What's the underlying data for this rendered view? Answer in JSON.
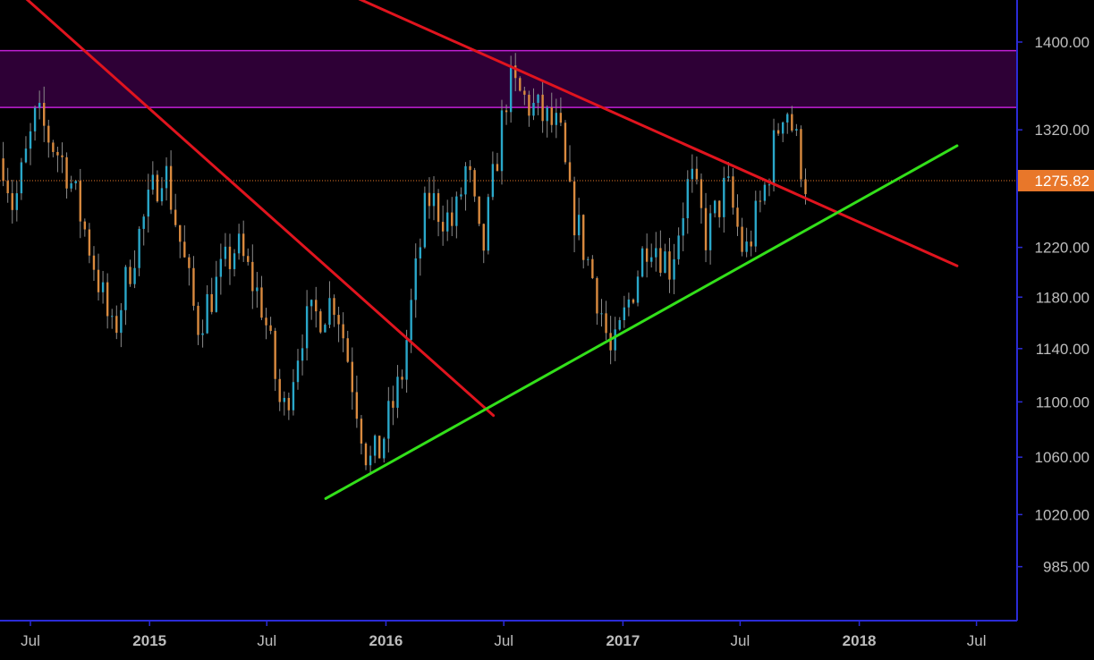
{
  "colors": {
    "background": "#000000",
    "axis": "#2b2bd6",
    "axis_text": "#bdbdbd",
    "candle_up": "#2aa7c9",
    "candle_down": "#d98a3f",
    "resistance_zone_fill": "#2e0036",
    "resistance_zone_edge": "#c21fd6",
    "downtrend": "#e0141e",
    "uptrend": "#33e01a",
    "last_price": "#e8772a",
    "last_price_label_text": "#ffffff"
  },
  "chart_data": {
    "type": "candlestick",
    "title": "",
    "xlabel": "",
    "ylabel": "",
    "ylim": [
      950,
      1440
    ],
    "y_scale": "log",
    "y_tick_labels": [
      "1400.00",
      "1320.00",
      "1220.00",
      "1180.00",
      "1140.00",
      "1100.00",
      "1060.00",
      "1020.00",
      "985.00"
    ],
    "y_tick_values": [
      1400,
      1320,
      1220,
      1180,
      1140,
      1100,
      1060,
      1020,
      985
    ],
    "x_range": [
      "2014-05-15",
      "2018-09-01"
    ],
    "x_tick_labels": [
      "Jul",
      "2015",
      "Jul",
      "2016",
      "Jul",
      "2017",
      "Jul",
      "2018",
      "Jul"
    ],
    "x_tick_dates": [
      "2014-07-01",
      "2015-01-01",
      "2015-07-01",
      "2016-01-01",
      "2016-07-01",
      "2017-01-01",
      "2017-07-01",
      "2018-01-01",
      "2018-07-01"
    ],
    "last_price": 1275.82,
    "last_price_label": "1275.82",
    "resistance_zone": [
      1340,
      1392
    ],
    "trendlines": [
      {
        "role": "downtrend",
        "start": {
          "date": "2014-05-15",
          "value": 1464
        },
        "end": {
          "date": "2016-06-15",
          "value": 1090
        }
      },
      {
        "role": "downtrend",
        "start": {
          "date": "2015-06-01",
          "value": 1490
        },
        "end": {
          "date": "2018-06-01",
          "value": 1205
        }
      },
      {
        "role": "uptrend",
        "start": {
          "date": "2015-09-30",
          "value": 1031
        },
        "end": {
          "date": "2018-06-01",
          "value": 1306
        }
      }
    ],
    "price_path": [
      {
        "date": "2014-05-20",
        "value": 1295
      },
      {
        "date": "2014-06-05",
        "value": 1252
      },
      {
        "date": "2014-07-10",
        "value": 1332
      },
      {
        "date": "2014-08-25",
        "value": 1288
      },
      {
        "date": "2014-10-05",
        "value": 1212
      },
      {
        "date": "2014-11-05",
        "value": 1148
      },
      {
        "date": "2014-12-05",
        "value": 1212
      },
      {
        "date": "2015-01-22",
        "value": 1292
      },
      {
        "date": "2015-03-15",
        "value": 1158
      },
      {
        "date": "2015-05-15",
        "value": 1222
      },
      {
        "date": "2015-06-25",
        "value": 1172
      },
      {
        "date": "2015-07-25",
        "value": 1088
      },
      {
        "date": "2015-08-25",
        "value": 1155
      },
      {
        "date": "2015-10-15",
        "value": 1180
      },
      {
        "date": "2015-12-05",
        "value": 1055
      },
      {
        "date": "2015-12-20",
        "value": 1062
      },
      {
        "date": "2016-01-25",
        "value": 1118
      },
      {
        "date": "2016-03-05",
        "value": 1262
      },
      {
        "date": "2016-04-15",
        "value": 1238
      },
      {
        "date": "2016-05-05",
        "value": 1290
      },
      {
        "date": "2016-05-28",
        "value": 1210
      },
      {
        "date": "2016-07-08",
        "value": 1362
      },
      {
        "date": "2016-08-10",
        "value": 1342
      },
      {
        "date": "2016-09-25",
        "value": 1318
      },
      {
        "date": "2016-10-10",
        "value": 1260
      },
      {
        "date": "2016-11-25",
        "value": 1178
      },
      {
        "date": "2016-12-15",
        "value": 1130
      },
      {
        "date": "2017-02-10",
        "value": 1232
      },
      {
        "date": "2017-03-15",
        "value": 1205
      },
      {
        "date": "2017-04-15",
        "value": 1280
      },
      {
        "date": "2017-05-10",
        "value": 1228
      },
      {
        "date": "2017-06-10",
        "value": 1272
      },
      {
        "date": "2017-07-08",
        "value": 1212
      },
      {
        "date": "2017-08-05",
        "value": 1262
      },
      {
        "date": "2017-09-08",
        "value": 1348
      },
      {
        "date": "2017-10-10",
        "value": 1275.82
      }
    ]
  }
}
